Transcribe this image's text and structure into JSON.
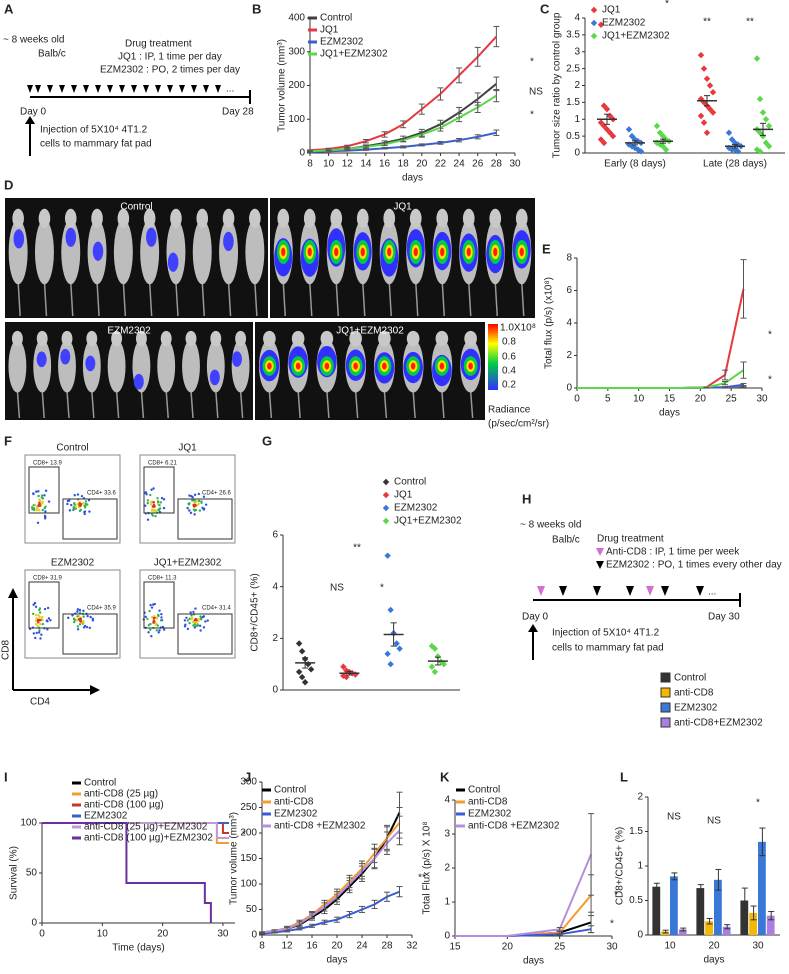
{
  "panel_labels": [
    "A",
    "B",
    "C",
    "D",
    "E",
    "F",
    "G",
    "H",
    "I",
    "J",
    "K",
    "L"
  ],
  "diagram_a": {
    "age": "~ 8 weeks old",
    "strain": "Balb/c",
    "treatment_title": "Drug treatment",
    "treatment_lines": [
      "JQ1 : IP, 1 time per day",
      "EZM2302 : PO, 2 times per day"
    ],
    "start": "Day 0",
    "end": "Day 28",
    "ellipsis": "...",
    "injection": [
      "Injection of 5X10⁴ 4T1.2",
      "cells to mammary fat pad"
    ]
  },
  "imaging_d": {
    "groups": [
      "Control",
      "JQ1",
      "EZM2302",
      "JQ1+EZM2302"
    ],
    "scale_ticks": [
      "1.0X10⁸",
      "0.8",
      "0.6",
      "0.4",
      "0.2"
    ],
    "scale_title": "Radiance",
    "scale_unit": "(p/sec/cm²/sr)"
  },
  "flow_f": {
    "plots": [
      {
        "title": "Control",
        "gates": [
          "CD8+ 13.9",
          "CD4+ 33.6"
        ]
      },
      {
        "title": "JQ1",
        "gates": [
          "CD8+ 6.21",
          "CD4+ 26.6"
        ]
      },
      {
        "title": "EZM2302",
        "gates": [
          "CD8+ 31.9",
          "CD4+ 35.9"
        ]
      },
      {
        "title": "JQ1+EZM2302",
        "gates": [
          "CD8+ 11.3",
          "CD4+ 31.4"
        ]
      }
    ],
    "y_axis": "CD8",
    "x_axis": "CD4"
  },
  "diagram_h": {
    "age": "~ 8 weeks old",
    "strain": "Balb/c",
    "treatment_title": "Drug treatment",
    "treatment_lines": [
      "Anti-CD8 : IP, 1 time per week",
      "EZM2302 : PO, 1 times every other day"
    ],
    "start": "Day 0",
    "end": "Day 30",
    "ellipsis": "...",
    "injection": [
      "Injection of 5X10⁴ 4T1.2",
      "cells to mammary fat pad"
    ]
  },
  "chart_data": [
    {
      "type": "line",
      "x_label": "days",
      "y_label": "Tumor volume (mm³)",
      "xlim": [
        8,
        30
      ],
      "xticks": [
        8,
        10,
        12,
        14,
        16,
        18,
        20,
        22,
        24,
        26,
        28,
        30
      ],
      "ylim": [
        0,
        400
      ],
      "yticks": [
        0,
        100,
        200,
        300,
        400
      ],
      "x": [
        8,
        10,
        12,
        14,
        16,
        18,
        20,
        22,
        24,
        26,
        28
      ],
      "series": [
        {
          "name": "Control",
          "color": "#404040",
          "values": [
            5,
            8,
            12,
            20,
            30,
            42,
            60,
            85,
            120,
            160,
            205
          ],
          "errors": [
            1,
            2,
            3,
            4,
            6,
            8,
            10,
            12,
            15,
            18,
            20
          ]
        },
        {
          "name": "JQ1",
          "color": "#e8383d",
          "values": [
            8,
            12,
            20,
            35,
            55,
            85,
            130,
            175,
            230,
            285,
            345
          ],
          "errors": [
            1,
            2,
            3,
            5,
            8,
            10,
            15,
            18,
            22,
            28,
            30
          ]
        },
        {
          "name": "EZM2302",
          "color": "#3a5fcd",
          "values": [
            3,
            5,
            7,
            10,
            14,
            18,
            24,
            30,
            38,
            48,
            60
          ],
          "errors": [
            1,
            1,
            1,
            2,
            2,
            3,
            3,
            4,
            5,
            6,
            8
          ]
        },
        {
          "name": "JQ1+EZM2302",
          "color": "#5ad84a",
          "values": [
            5,
            8,
            12,
            18,
            26,
            38,
            55,
            75,
            105,
            135,
            170
          ],
          "errors": [
            1,
            1,
            2,
            3,
            4,
            5,
            8,
            10,
            12,
            15,
            18
          ]
        }
      ],
      "annotations": [
        "*",
        "NS",
        "*"
      ]
    },
    {
      "type": "strip",
      "y_label": "Tumor size ratio by control group",
      "categories": [
        "Early (8 days)",
        "Late (28 days)"
      ],
      "ylim": [
        0,
        4
      ],
      "yticks": [
        0,
        0.5,
        1,
        1.5,
        2,
        2.5,
        3,
        3.5,
        4
      ],
      "series": [
        {
          "name": "JQ1",
          "color": "#e8383d",
          "values": [
            [
              3.8,
              1.4,
              1.3,
              1.1,
              1.0,
              0.9,
              0.8,
              0.7,
              0.6,
              0.5,
              0.4,
              0.3
            ],
            [
              2.9,
              2.5,
              2.2,
              2.0,
              1.8,
              1.6,
              1.5,
              1.4,
              1.3,
              1.2,
              1.1,
              0.9,
              0.6
            ]
          ],
          "mean": [
            1.0,
            1.55
          ],
          "errors": [
            0.15,
            0.15
          ]
        },
        {
          "name": "EZM2302",
          "color": "#3a78d8",
          "values": [
            [
              0.7,
              0.5,
              0.4,
              0.35,
              0.3,
              0.25,
              0.2,
              0.15,
              0.1,
              0.05
            ],
            [
              0.6,
              0.4,
              0.3,
              0.25,
              0.2,
              0.15,
              0.1,
              0.1,
              0.05
            ]
          ],
          "mean": [
            0.3,
            0.2
          ],
          "errors": [
            0.06,
            0.05
          ]
        },
        {
          "name": "JQ1+EZM2302",
          "color": "#5ad84a",
          "values": [
            [
              0.8,
              0.6,
              0.5,
              0.4,
              0.35,
              0.3,
              0.25,
              0.2,
              0.1
            ],
            [
              2.8,
              1.6,
              1.2,
              1.0,
              0.8,
              0.7,
              0.6,
              0.5,
              0.3,
              0.2,
              0.1,
              0.05
            ]
          ],
          "mean": [
            0.35,
            0.7
          ],
          "errors": [
            0.06,
            0.18
          ]
        }
      ],
      "annotations": [
        "*",
        "**",
        "**"
      ]
    },
    {
      "type": "line",
      "x_label": "days",
      "y_label": "Total flux (p/s) (x10⁸)",
      "xlim": [
        0,
        30
      ],
      "xticks": [
        0,
        5,
        10,
        15,
        20,
        25,
        30
      ],
      "ylim": [
        0,
        8
      ],
      "yticks": [
        0,
        2,
        4,
        6,
        8
      ],
      "x": [
        0,
        3,
        7,
        10,
        14,
        17,
        21,
        24,
        27
      ],
      "series": [
        {
          "color": "#808080",
          "values": [
            0,
            0,
            0,
            0,
            0,
            0,
            0.02,
            0.05,
            0.1
          ],
          "errors": [
            0,
            0,
            0,
            0,
            0,
            0,
            0.01,
            0.02,
            0.05
          ]
        },
        {
          "color": "#e8383d",
          "values": [
            0,
            0,
            0,
            0,
            0,
            0,
            0.05,
            0.8,
            6.1
          ],
          "errors": [
            0,
            0,
            0,
            0,
            0,
            0,
            0.02,
            0.3,
            1.8
          ]
        },
        {
          "color": "#3a5fcd",
          "values": [
            0,
            0,
            0,
            0,
            0,
            0,
            0.02,
            0.05,
            0.2
          ],
          "errors": [
            0,
            0,
            0,
            0,
            0,
            0,
            0.01,
            0.02,
            0.08
          ]
        },
        {
          "color": "#5ad84a",
          "values": [
            0,
            0,
            0,
            0,
            0,
            0,
            0.03,
            0.3,
            1.1
          ],
          "errors": [
            0,
            0,
            0,
            0,
            0,
            0,
            0.01,
            0.1,
            0.5
          ]
        }
      ],
      "annotations": [
        "*",
        "*"
      ]
    },
    {
      "type": "strip",
      "y_label": "CD8+/CD45+ (%)",
      "ylim": [
        0,
        6
      ],
      "yticks": [
        0,
        2,
        4,
        6
      ],
      "series": [
        {
          "name": "Control",
          "color": "#333333",
          "values": [
            1.8,
            1.5,
            1.2,
            1.0,
            0.8,
            0.7,
            0.5,
            0.3
          ],
          "mean": 1.05,
          "error": 0.2
        },
        {
          "name": "JQ1",
          "color": "#e8383d",
          "values": [
            0.9,
            0.75,
            0.7,
            0.65,
            0.6,
            0.55,
            0.5
          ],
          "mean": 0.65,
          "error": 0.07
        },
        {
          "name": "EZM2302",
          "color": "#3a78d8",
          "values": [
            5.2,
            3.1,
            2.2,
            1.8,
            1.6,
            1.4,
            1.0
          ],
          "mean": 2.15,
          "error": 0.45
        },
        {
          "name": "JQ1+EZM2302",
          "color": "#5ad84a",
          "values": [
            1.7,
            1.6,
            1.3,
            1.1,
            1.0,
            0.9,
            0.7
          ],
          "mean": 1.12,
          "error": 0.15
        }
      ],
      "annotations": [
        "**",
        "NS",
        "*"
      ]
    },
    {
      "type": "line",
      "x_label": "Time (days)",
      "y_label": "Survival (%)",
      "xlim": [
        0,
        32
      ],
      "xticks": [
        0,
        10,
        20,
        30
      ],
      "ylim": [
        0,
        100
      ],
      "yticks": [
        0,
        50,
        100
      ],
      "series": [
        {
          "name": "Control",
          "color": "#000000",
          "x": [
            0,
            31
          ],
          "values": [
            100,
            100
          ]
        },
        {
          "name": "anti-CD8 (25 µg)",
          "color": "#f39c32",
          "x": [
            0,
            29,
            29,
            31
          ],
          "values": [
            100,
            100,
            80,
            80
          ]
        },
        {
          "name": "anti-CD8 (100 µg)",
          "color": "#c0392b",
          "x": [
            0,
            30,
            30,
            31
          ],
          "values": [
            100,
            100,
            90,
            90
          ]
        },
        {
          "name": "EZM2302",
          "color": "#3a5fcd",
          "x": [
            0,
            31
          ],
          "values": [
            100,
            100
          ]
        },
        {
          "name": "anti-CD8 (25 µg)+EZM2302",
          "color": "#c39bd3",
          "x": [
            0,
            29,
            29,
            31
          ],
          "values": [
            100,
            100,
            85,
            85
          ]
        },
        {
          "name": "anti-CD8 (100 µg)+EZM2302",
          "color": "#6a2fa0",
          "x": [
            0,
            14,
            14,
            27,
            27,
            28,
            28
          ],
          "values": [
            100,
            100,
            40,
            40,
            20,
            20,
            0
          ]
        }
      ],
      "annotations": [
        "*"
      ]
    },
    {
      "type": "line",
      "x_label": "days",
      "y_label": "Tumor volume (mm³)",
      "xlim": [
        8,
        32
      ],
      "xticks": [
        8,
        12,
        16,
        20,
        24,
        28,
        32
      ],
      "ylim": [
        0,
        300
      ],
      "yticks": [
        0,
        50,
        100,
        150,
        200,
        250,
        300
      ],
      "x": [
        8,
        10,
        12,
        14,
        16,
        18,
        20,
        22,
        24,
        26,
        28,
        30
      ],
      "series": [
        {
          "name": "Control",
          "color": "#000000",
          "values": [
            5,
            8,
            12,
            20,
            35,
            50,
            70,
            95,
            120,
            150,
            190,
            240
          ],
          "errors": [
            1,
            2,
            3,
            4,
            6,
            8,
            10,
            12,
            15,
            20,
            25,
            40
          ]
        },
        {
          "name": "anti-CD8",
          "color": "#f39c32",
          "values": [
            5,
            8,
            14,
            25,
            40,
            60,
            80,
            105,
            130,
            160,
            190,
            220
          ],
          "errors": [
            1,
            2,
            3,
            4,
            6,
            8,
            10,
            12,
            15,
            18,
            22,
            30
          ]
        },
        {
          "name": "EZM2302",
          "color": "#3b5bd6",
          "values": [
            3,
            5,
            8,
            12,
            18,
            25,
            30,
            40,
            50,
            60,
            75,
            85
          ],
          "errors": [
            1,
            1,
            2,
            2,
            3,
            4,
            5,
            6,
            6,
            8,
            9,
            10
          ]
        },
        {
          "name": "anti-CD8 +EZM2302",
          "color": "#b48ee0",
          "values": [
            5,
            8,
            12,
            22,
            38,
            55,
            75,
            100,
            125,
            150,
            180,
            205
          ],
          "errors": [
            1,
            2,
            3,
            4,
            6,
            8,
            10,
            12,
            15,
            18,
            22,
            28
          ]
        }
      ],
      "annotations": [
        "**"
      ]
    },
    {
      "type": "line",
      "x_label": "days",
      "y_label": "Total Flux (p/s) X 10⁸",
      "xlim": [
        15,
        30
      ],
      "xticks": [
        15,
        20,
        25,
        30
      ],
      "ylim": [
        0,
        4
      ],
      "yticks": [
        0,
        1,
        2,
        3,
        4
      ],
      "x": [
        15,
        20,
        25,
        28
      ],
      "series": [
        {
          "name": "Control",
          "color": "#000000",
          "values": [
            0,
            0,
            0.1,
            0.4
          ],
          "errors": [
            0,
            0,
            0.03,
            0.3
          ]
        },
        {
          "name": "anti-CD8",
          "color": "#f39c32",
          "values": [
            0,
            0,
            0.1,
            1.2
          ],
          "errors": [
            0,
            0,
            0.03,
            0.6
          ]
        },
        {
          "name": "EZM2302",
          "color": "#3b5bd6",
          "values": [
            0,
            0,
            0.05,
            0.2
          ],
          "errors": [
            0,
            0,
            0.02,
            0.1
          ]
        },
        {
          "name": "anti-CD8 +EZM2302",
          "color": "#b48ee0",
          "values": [
            0,
            0,
            0.2,
            2.4
          ],
          "errors": [
            0,
            0,
            0.05,
            1.2
          ]
        }
      ],
      "annotations": [
        "*",
        "*"
      ]
    },
    {
      "type": "bar",
      "x_label": "days",
      "y_label": "CD8+/CD45+ (%)",
      "categories": [
        "10",
        "20",
        "30"
      ],
      "ylim": [
        0,
        2
      ],
      "yticks": [
        0,
        0.5,
        1,
        1.5,
        2
      ],
      "series": [
        {
          "name": "Control",
          "color": "#333333",
          "values": [
            0.7,
            0.68,
            0.5
          ],
          "errors": [
            0.05,
            0.05,
            0.18
          ]
        },
        {
          "name": "anti-CD8",
          "color": "#f5b800",
          "values": [
            0.05,
            0.2,
            0.32
          ],
          "errors": [
            0.02,
            0.04,
            0.1
          ]
        },
        {
          "name": "EZM2302",
          "color": "#3a78d8",
          "values": [
            0.85,
            0.8,
            1.35
          ],
          "errors": [
            0.05,
            0.15,
            0.2
          ]
        },
        {
          "name": "anti-CD8+EZM2302",
          "color": "#a97fe0",
          "values": [
            0.08,
            0.12,
            0.28
          ],
          "errors": [
            0.02,
            0.03,
            0.06
          ]
        }
      ],
      "annotations": [
        "NS",
        "NS",
        "*"
      ]
    }
  ]
}
